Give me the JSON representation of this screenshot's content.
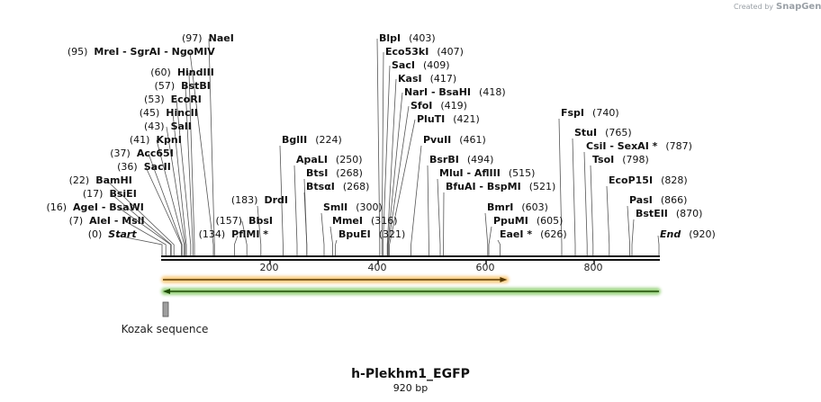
{
  "watermark": {
    "prefix": "Created by",
    "brand": "SnapGene"
  },
  "title": "h-Plekhm1_EGFP",
  "length_label": "920 bp",
  "sequence_length": 920,
  "ruler": {
    "ticks": [
      200,
      400,
      600,
      800
    ]
  },
  "features": [
    {
      "name": "",
      "start": 1,
      "end": 639,
      "strand": "forward",
      "color": "#f5a623"
    },
    {
      "name": "",
      "start": 1,
      "end": 920,
      "strand": "reverse",
      "color": "#4caf1a"
    },
    {
      "name": "Kozak sequence",
      "start": 1,
      "end": 10,
      "strand": "none",
      "color": "#9e9e9e"
    }
  ],
  "sites": [
    {
      "name": "Start",
      "pos": "0",
      "at": 0,
      "symbolic": true
    },
    {
      "name": "AleI - MslI",
      "pos": "7",
      "at": 7
    },
    {
      "name": "AgeI - BsaWI",
      "pos": "16",
      "at": 16
    },
    {
      "name": "BsiEI",
      "pos": "17",
      "at": 17
    },
    {
      "name": "BamHI",
      "pos": "22",
      "at": 22
    },
    {
      "name": "SacII",
      "pos": "36",
      "at": 36
    },
    {
      "name": "Acc65I",
      "pos": "37",
      "at": 37
    },
    {
      "name": "KpnI",
      "pos": "41",
      "at": 41
    },
    {
      "name": "SalI",
      "pos": "43",
      "at": 43
    },
    {
      "name": "HincII",
      "pos": "45",
      "at": 45
    },
    {
      "name": "EcoRI",
      "pos": "53",
      "at": 53
    },
    {
      "name": "BstBI",
      "pos": "57",
      "at": 57
    },
    {
      "name": "HindIII",
      "pos": "60",
      "at": 60
    },
    {
      "name": "MreI - SgrAI - NgoMIV",
      "pos": "95",
      "at": 95
    },
    {
      "name": "NaeI",
      "pos": "97",
      "at": 97
    },
    {
      "name": "PflMI *",
      "pos": "134",
      "at": 134
    },
    {
      "name": "BbsI",
      "pos": "157",
      "at": 157
    },
    {
      "name": "DrdI",
      "pos": "183",
      "at": 183
    },
    {
      "name": "BglII",
      "pos": "224",
      "at": 224
    },
    {
      "name": "ApaLI",
      "pos": "250",
      "at": 250
    },
    {
      "name": "BtsI",
      "pos": "268",
      "at": 268
    },
    {
      "name": "BtsαI",
      "pos": "268",
      "at": 268
    },
    {
      "name": "SmlI",
      "pos": "300",
      "at": 300
    },
    {
      "name": "MmeI",
      "pos": "316",
      "at": 316
    },
    {
      "name": "BpuEI",
      "pos": "321",
      "at": 321
    },
    {
      "name": "BlpI",
      "pos": "403",
      "at": 403
    },
    {
      "name": "Eco53kI",
      "pos": "407",
      "at": 407
    },
    {
      "name": "SacI",
      "pos": "409",
      "at": 409
    },
    {
      "name": "KasI",
      "pos": "417",
      "at": 417
    },
    {
      "name": "NarI - BsaHI",
      "pos": "418",
      "at": 418
    },
    {
      "name": "SfoI",
      "pos": "419",
      "at": 419
    },
    {
      "name": "PluTI",
      "pos": "421",
      "at": 421
    },
    {
      "name": "PvuII",
      "pos": "461",
      "at": 461
    },
    {
      "name": "BsrBI",
      "pos": "494",
      "at": 494
    },
    {
      "name": "MluI - AflIII",
      "pos": "515",
      "at": 515
    },
    {
      "name": "BfuAI - BspMI",
      "pos": "521",
      "at": 521
    },
    {
      "name": "BmrI",
      "pos": "603",
      "at": 603
    },
    {
      "name": "PpuMI",
      "pos": "605",
      "at": 605
    },
    {
      "name": "EaeI *",
      "pos": "626",
      "at": 626
    },
    {
      "name": "FspI",
      "pos": "740",
      "at": 740
    },
    {
      "name": "StuI",
      "pos": "765",
      "at": 765
    },
    {
      "name": "CsiI - SexAI *",
      "pos": "787",
      "at": 787
    },
    {
      "name": "TsoI",
      "pos": "798",
      "at": 798
    },
    {
      "name": "EcoP15I",
      "pos": "828",
      "at": 828
    },
    {
      "name": "PasI",
      "pos": "866",
      "at": 866
    },
    {
      "name": "BstEII",
      "pos": "870",
      "at": 870
    },
    {
      "name": "End",
      "pos": "920",
      "at": 920,
      "symbolic": true
    }
  ]
}
